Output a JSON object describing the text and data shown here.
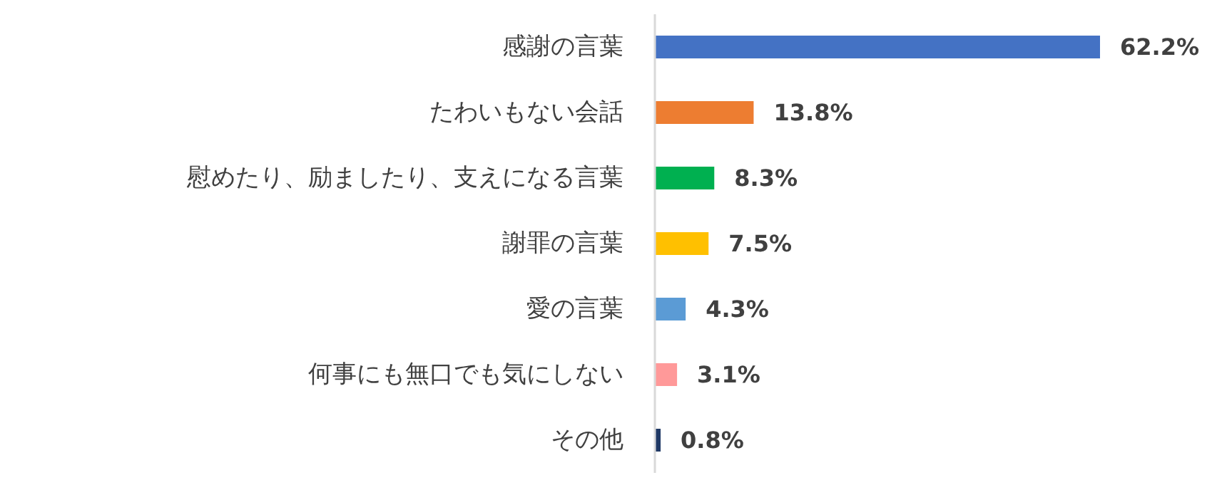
{
  "chart_data": {
    "type": "bar",
    "orientation": "horizontal",
    "categories": [
      "感謝の言葉",
      "たわいもない会話",
      "慰めたり、励ましたり、支えになる言葉",
      "謝罪の言葉",
      "愛の言葉",
      "何事にも無口でも気にしない",
      "その他"
    ],
    "values": [
      62.2,
      13.8,
      8.3,
      7.5,
      4.3,
      3.1,
      0.8
    ],
    "colors": [
      "#4472c4",
      "#ed7d31",
      "#00b050",
      "#ffc000",
      "#5b9bd5",
      "#ff9999",
      "#1f3864"
    ],
    "value_labels": [
      "62.2%",
      "13.8%",
      "8.3%",
      "7.5%",
      "4.3%",
      "3.1%",
      "0.8%"
    ]
  }
}
